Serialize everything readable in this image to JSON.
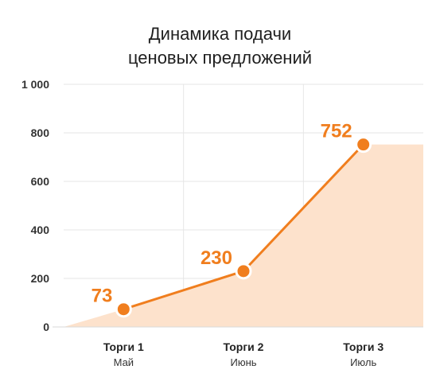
{
  "chart_data": {
    "type": "line",
    "title_lines": [
      "Динамика подачи",
      "ценовых предложений"
    ],
    "categories": [
      "Торги 1",
      "Торги 2",
      "Торги 3"
    ],
    "subcategories": [
      "Май",
      "Июнь",
      "Июль"
    ],
    "series": [
      {
        "values": [
          73,
          230,
          752
        ]
      }
    ],
    "data_labels": [
      "73",
      "230",
      "752"
    ],
    "yticks": [
      0,
      200,
      400,
      600,
      800,
      1000
    ],
    "ytick_labels": [
      "0",
      "200",
      "400",
      "600",
      "800",
      "1 000"
    ],
    "ylim": [
      0,
      1000
    ],
    "grid": true,
    "colors": {
      "line": "#f07e1e",
      "area": "#fde2cc",
      "label": "#f07e1e",
      "grid": "#e6e6e6"
    }
  }
}
